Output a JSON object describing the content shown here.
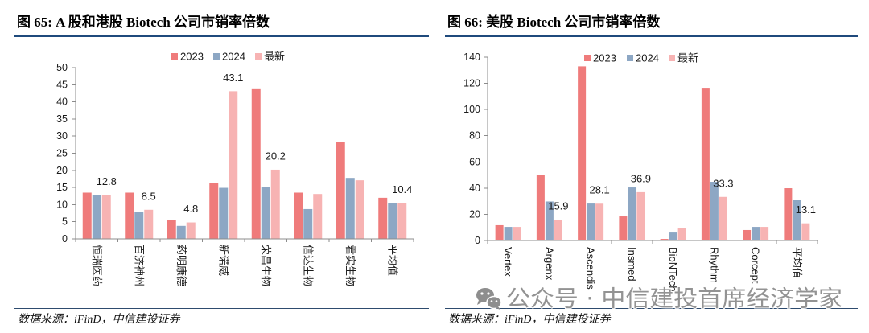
{
  "chart_data": [
    {
      "type": "bar",
      "title": "图 65: A 股和港股 Biotech 公司市销率倍数",
      "categories": [
        "恒瑞医药",
        "百济神州",
        "药明康德",
        "新诺威",
        "荣昌生物",
        "信达生物",
        "君实生物",
        "平均值"
      ],
      "series": [
        {
          "name": "2023",
          "color": "#EF7B7B",
          "values": [
            13.5,
            13.5,
            5.5,
            16.3,
            43.7,
            13.5,
            28.2,
            12.0
          ]
        },
        {
          "name": "2024",
          "color": "#8DA7C4",
          "values": [
            12.7,
            7.8,
            3.8,
            14.9,
            15.1,
            8.7,
            17.8,
            10.5
          ]
        },
        {
          "name": "最新",
          "color": "#F7B3B3",
          "values": [
            12.8,
            8.5,
            4.8,
            43.1,
            20.2,
            13.1,
            17.1,
            10.4
          ],
          "labels": [
            "12.8",
            "8.5",
            "4.8",
            "43.1",
            "20.2",
            null,
            null,
            "10.4"
          ]
        }
      ],
      "ylim": [
        0,
        50
      ],
      "yticks": [
        0,
        5,
        10,
        15,
        20,
        25,
        30,
        35,
        40,
        45,
        50
      ],
      "grid": false,
      "legend": "top",
      "source": "数据来源：iFinD，中信建投证券"
    },
    {
      "type": "bar",
      "title": "图 66: 美股 Biotech 公司市销率倍数",
      "categories": [
        "Vertex",
        "Argenx",
        "Ascendis",
        "Insmed",
        "BioNTech",
        "Rhythm",
        "Corcept",
        "平均值"
      ],
      "series": [
        {
          "name": "2023",
          "color": "#EF7B7B",
          "values": [
            11.7,
            50.3,
            133.0,
            18.4,
            1.2,
            116.0,
            8.0,
            39.9
          ]
        },
        {
          "name": "2024",
          "color": "#8DA7C4",
          "values": [
            10.4,
            29.8,
            28.2,
            40.5,
            6.1,
            44.8,
            10.4,
            30.7
          ]
        },
        {
          "name": "最新",
          "color": "#F7B3B3",
          "values": [
            10.4,
            15.9,
            28.1,
            36.9,
            9.2,
            33.3,
            10.4,
            13.1
          ],
          "labels": [
            null,
            "15.9",
            "28.1",
            "36.9",
            null,
            "33.3",
            null,
            "13.1"
          ]
        }
      ],
      "ylim": [
        0,
        140
      ],
      "yticks": [
        0,
        20,
        40,
        60,
        80,
        100,
        120,
        140
      ],
      "grid": false,
      "legend": "top",
      "source": "数据来源：iFinD，中信建投证券"
    }
  ],
  "watermark": {
    "text": "公众号 · 中信建投首席经济学家",
    "icon": "wechat-icon"
  }
}
